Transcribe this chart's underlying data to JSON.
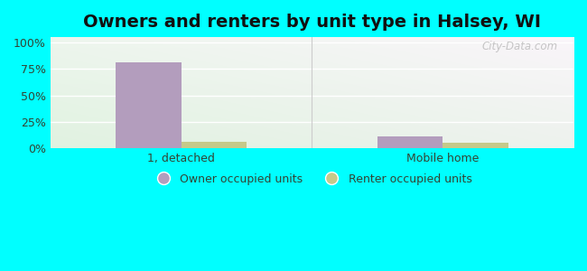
{
  "title": "Owners and renters by unit type in Halsey, WI",
  "categories": [
    "1, detached",
    "Mobile home"
  ],
  "owner_values": [
    81,
    11
  ],
  "renter_values": [
    6,
    5
  ],
  "owner_color": "#b39dbd",
  "renter_color": "#c5c98a",
  "yticks": [
    0,
    25,
    50,
    75,
    100
  ],
  "ytick_labels": [
    "0%",
    "25%",
    "50%",
    "75%",
    "100%"
  ],
  "ylim": [
    0,
    105
  ],
  "bar_width": 0.25,
  "outer_bg": "#00ffff",
  "title_fontsize": 14,
  "legend_labels": [
    "Owner occupied units",
    "Renter occupied units"
  ],
  "watermark": "City-Data.com",
  "bg_colors": [
    "#d4ede0",
    "#e8f4e8",
    "#f0f8ec",
    "#f8fdf8"
  ],
  "grid_color": "#d8e8d0",
  "text_color": "#334433"
}
